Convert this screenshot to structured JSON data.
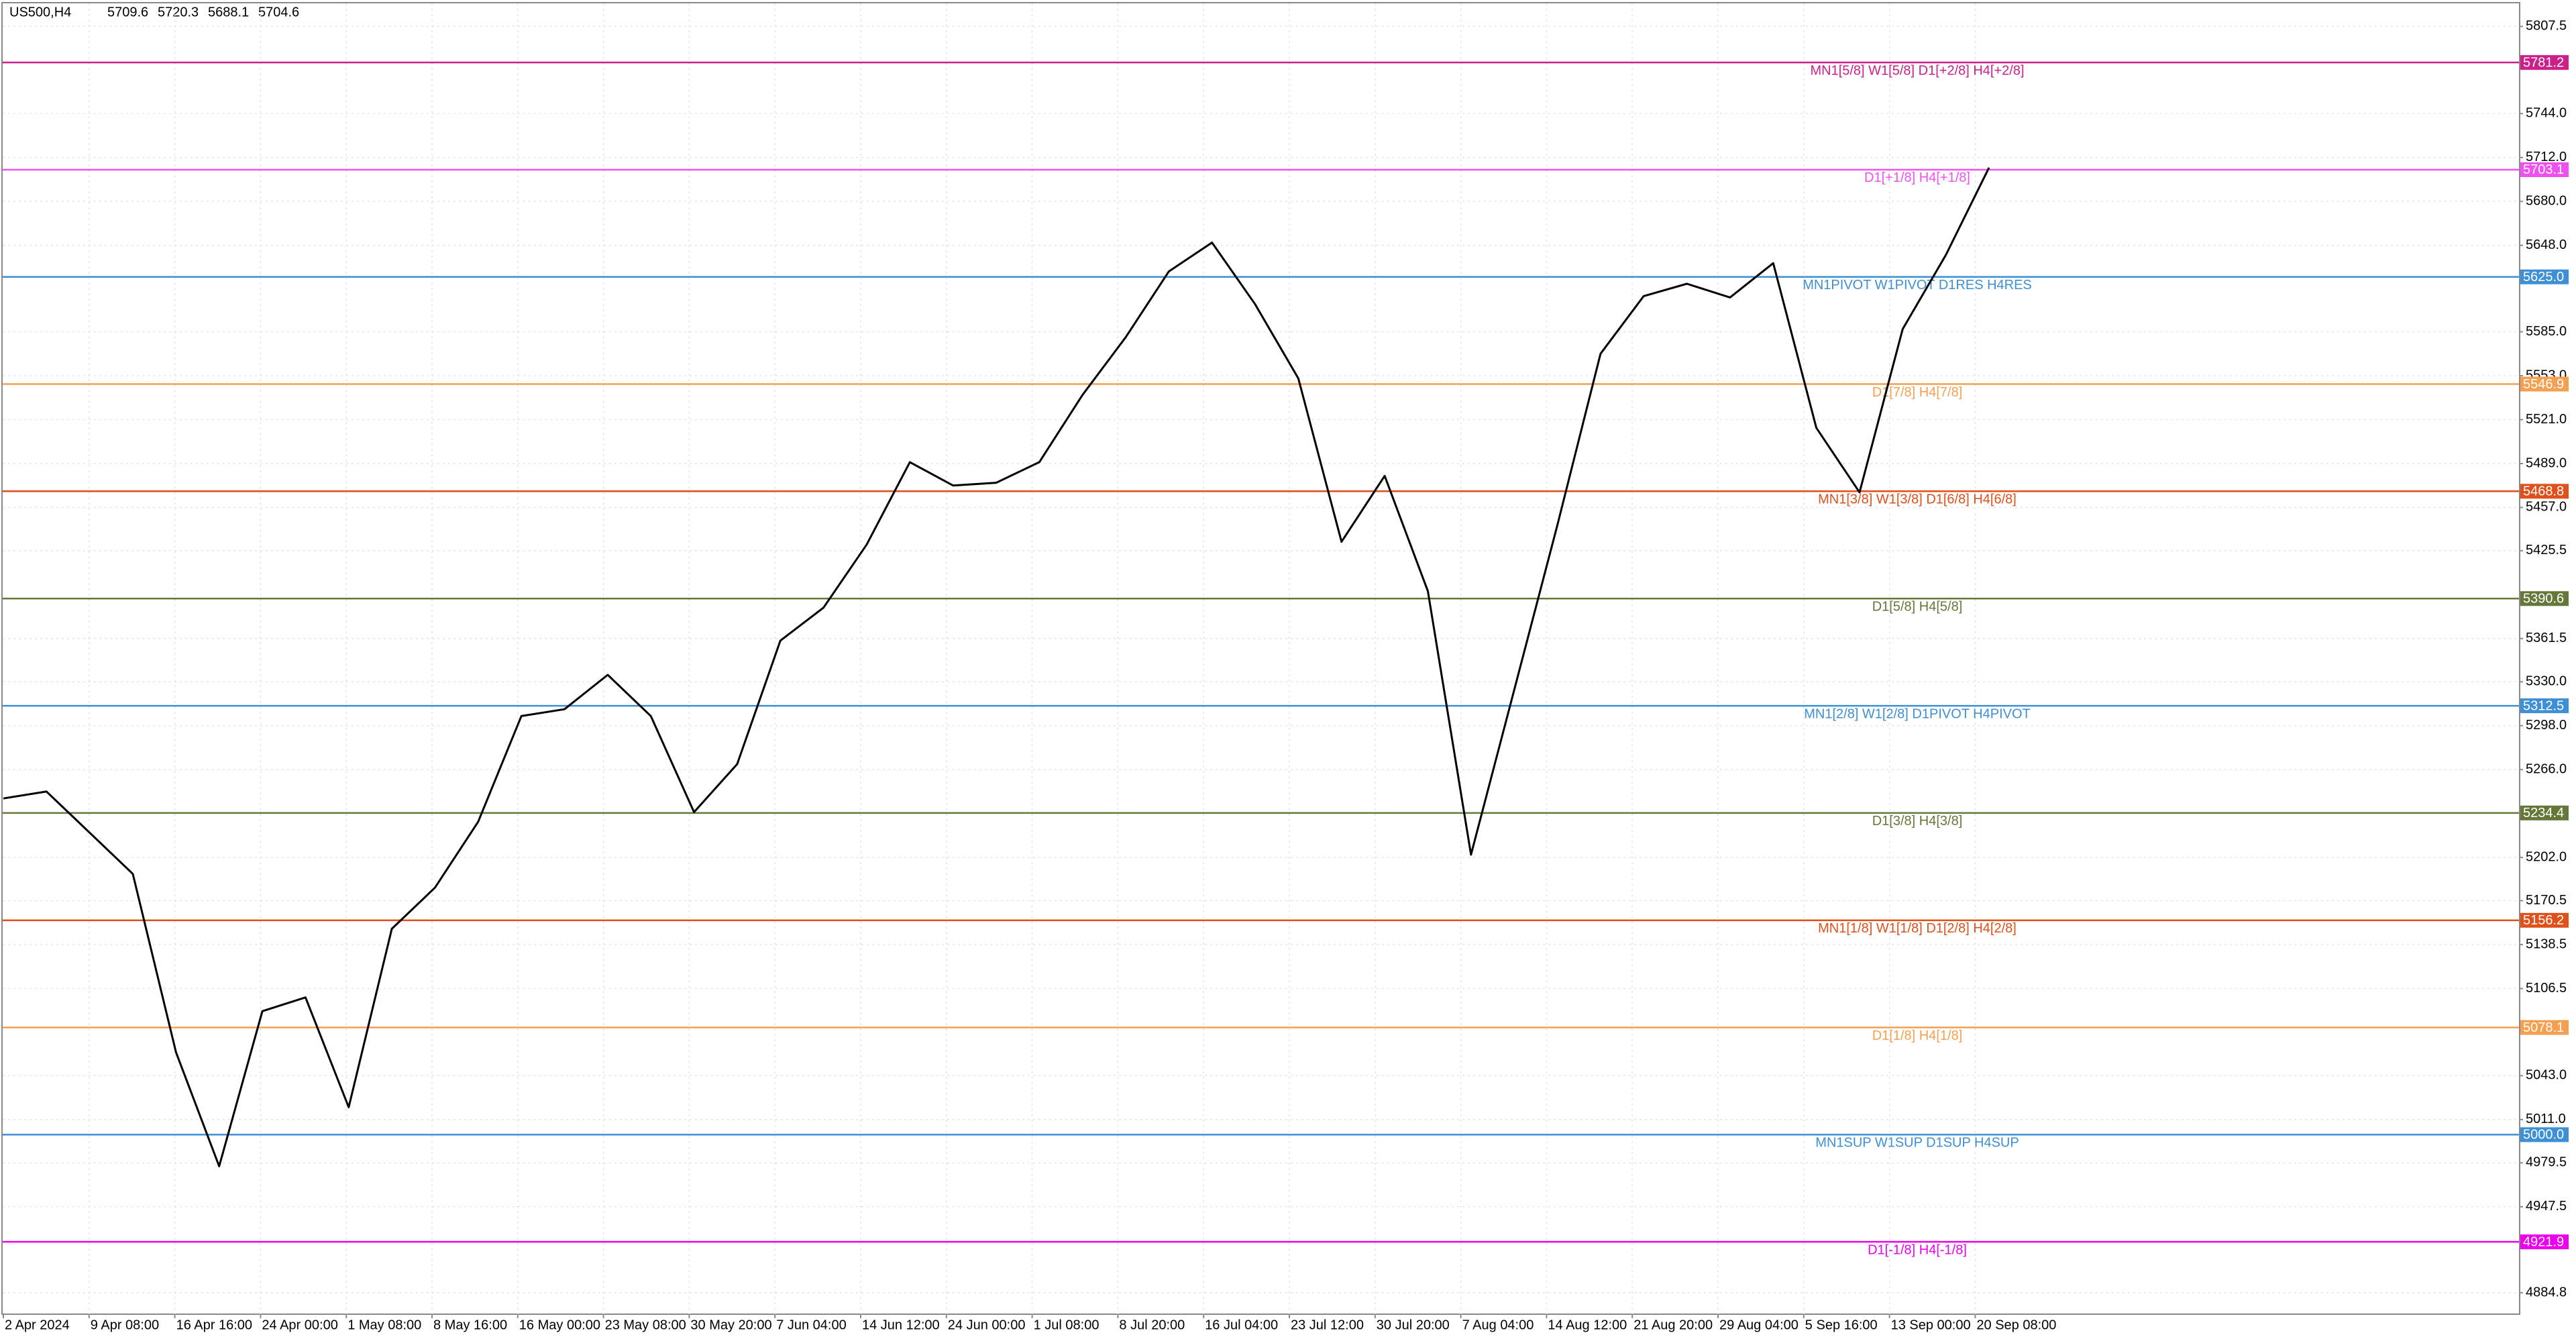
{
  "chart_data": {
    "type": "line",
    "title": "US500,H4",
    "quote": [
      5709.6,
      5720.3,
      5688.1,
      5704.6
    ],
    "color": "#000000",
    "values": [
      5245,
      5250,
      5220,
      5190,
      5060,
      4977,
      5090,
      5100,
      5020,
      5150,
      5180,
      5228,
      5305,
      5310,
      5335,
      5305,
      5235,
      5270,
      5360,
      5384,
      5430,
      5490,
      5473,
      5475,
      5490,
      5539,
      5581,
      5629,
      5650,
      5605,
      5551,
      5432,
      5480,
      5396,
      5204,
      5324,
      5444,
      5569,
      5611,
      5620,
      5610,
      5635,
      5515,
      5468,
      5587,
      5641,
      5704.6
    ],
    "x_labels": [
      "2 Apr 2024",
      "9 Apr 08:00",
      "16 Apr 16:00",
      "24 Apr 00:00",
      "1 May 08:00",
      "8 May 16:00",
      "16 May 00:00",
      "23 May 08:00",
      "30 May 20:00",
      "7 Jun 04:00",
      "14 Jun 12:00",
      "24 Jun 00:00",
      "1 Jul 08:00",
      "8 Jul 20:00",
      "16 Jul 04:00",
      "23 Jul 12:00",
      "30 Jul 20:00",
      "7 Aug 04:00",
      "14 Aug 12:00",
      "21 Aug 20:00",
      "29 Aug 04:00",
      "5 Sep 16:00",
      "13 Sep 00:00",
      "20 Sep 08:00"
    ],
    "ylim": [
      4869.2,
      5824.3
    ],
    "yticks": [
      5807.5,
      {
        "value": 5744,
        "label": "5744.0"
      },
      {
        "value": 5712,
        "label": "5712.0"
      },
      {
        "value": 5680,
        "label": "5680.0"
      },
      {
        "value": 5648,
        "label": "5648.0"
      },
      {
        "value": 5585,
        "label": "5585.0"
      },
      {
        "value": 5553,
        "label": "5553.0"
      },
      {
        "value": 5521,
        "label": "5521.0"
      },
      {
        "value": 5489,
        "label": "5489.0"
      },
      {
        "value": 5457,
        "label": "5457.0"
      },
      5425.5,
      5361.5,
      {
        "value": 5330,
        "label": "5330.0"
      },
      {
        "value": 5298,
        "label": "5298.0"
      },
      {
        "value": 5266,
        "label": "5266.0"
      },
      {
        "value": 5202,
        "label": "5202.0"
      },
      5170.5,
      5138.5,
      5106.5,
      {
        "value": 5043,
        "label": "5043.0"
      },
      {
        "value": 5011,
        "label": "5011.0"
      },
      4979.5,
      4947.5,
      4884.8
    ],
    "grid": true,
    "levels": [
      {
        "price": 5781.2,
        "text": "MN1[5/8] W1[5/8] D1[+2/8] H4[+2/8]",
        "color": "#cc1f8a"
      },
      {
        "price": 5703.1,
        "text": "D1[+1/8] H4[+1/8]",
        "color": "#f050f0"
      },
      {
        "price": {
          "value": 5625,
          "label": "5625.0"
        },
        "text": "MN1PIVOT W1PIVOT D1RES H4RES",
        "color": "#3d8fd6"
      },
      {
        "price": 5546.9,
        "text": "D1[7/8] H4[7/8]",
        "color": "#f5a050"
      },
      {
        "price": 5468.8,
        "text": "MN1[3/8] W1[3/8] D1[6/8] H4[6/8]",
        "color": "#e0501a"
      },
      {
        "price": 5390.6,
        "text": "D1[5/8] H4[5/8]",
        "color": "#66773a"
      },
      {
        "price": 5312.5,
        "text": "MN1[2/8] W1[2/8] D1PIVOT H4PIVOT",
        "color": "#3d8fd6"
      },
      {
        "price": 5234.4,
        "text": "D1[3/8] H4[3/8]",
        "color": "#66773a"
      },
      {
        "price": 5156.2,
        "text": "MN1[1/8] W1[1/8] D1[2/8] H4[2/8]",
        "color": "#e0501a"
      },
      {
        "price": 5078.1,
        "text": "D1[1/8] H4[1/8]",
        "color": "#f5a050"
      },
      {
        "price": {
          "value": 5000,
          "label": "5000.0"
        },
        "text": "MN1SUP W1SUP D1SUP H4SUP",
        "color": "#3d8fd6"
      },
      {
        "price": 4921.9,
        "text": "D1[-1/8] H4[-1/8]",
        "color": "#ee00ee"
      }
    ]
  }
}
